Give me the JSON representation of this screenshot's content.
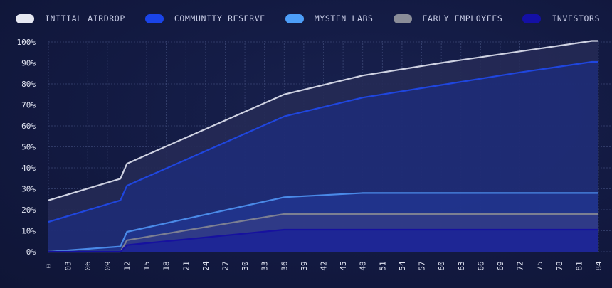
{
  "chart_data": {
    "type": "area",
    "title": "",
    "xlabel": "",
    "ylabel": "",
    "xlim": [
      0,
      84
    ],
    "ylim": [
      0,
      100
    ],
    "grid": true,
    "legend_position": "top-left",
    "x_ticks": [
      "0",
      "03",
      "06",
      "09",
      "12",
      "15",
      "18",
      "21",
      "24",
      "27",
      "30",
      "33",
      "36",
      "39",
      "42",
      "45",
      "48",
      "51",
      "54",
      "57",
      "60",
      "63",
      "66",
      "69",
      "72",
      "75",
      "78",
      "81",
      "84"
    ],
    "y_ticks": [
      "0%",
      "10%",
      "20%",
      "30%",
      "40%",
      "50%",
      "60%",
      "70%",
      "80%",
      "90%",
      "100%"
    ],
    "series": [
      {
        "name": "INITIAL AIRDROP",
        "color": "#e6e8f2",
        "points": [
          [
            0,
            24.5
          ],
          [
            11,
            34.8
          ],
          [
            12,
            42
          ],
          [
            36,
            75
          ],
          [
            48,
            84
          ],
          [
            60,
            90
          ],
          [
            72,
            95.5
          ],
          [
            83,
            100.5
          ],
          [
            84,
            100.5
          ]
        ]
      },
      {
        "name": "COMMUNITY RESERVE",
        "color": "#1a44e8",
        "points": [
          [
            0,
            14.2
          ],
          [
            11,
            24.5
          ],
          [
            12,
            31.5
          ],
          [
            36,
            64.5
          ],
          [
            48,
            73.5
          ],
          [
            60,
            79.5
          ],
          [
            72,
            85.5
          ],
          [
            83,
            90.5
          ],
          [
            84,
            90.5
          ]
        ]
      },
      {
        "name": "MYSTEN LABS",
        "color": "#4d9ef8",
        "points": [
          [
            0,
            0
          ],
          [
            11,
            2.5
          ],
          [
            12,
            9.5
          ],
          [
            36,
            26
          ],
          [
            48,
            28
          ],
          [
            84,
            28
          ]
        ]
      },
      {
        "name": "EARLY EMPLOYEES",
        "color": "#8a8d98",
        "points": [
          [
            0,
            0
          ],
          [
            11,
            0
          ],
          [
            12,
            5.5
          ],
          [
            36,
            18
          ],
          [
            84,
            18
          ]
        ]
      },
      {
        "name": "INVESTORS",
        "color": "#1410a6",
        "points": [
          [
            0,
            0
          ],
          [
            11,
            0
          ],
          [
            12,
            3.2
          ],
          [
            36,
            10.5
          ],
          [
            84,
            10.5
          ]
        ]
      }
    ]
  }
}
